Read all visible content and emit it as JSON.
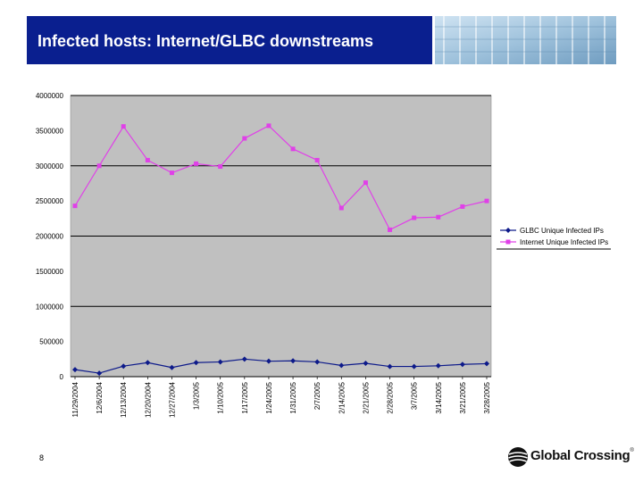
{
  "slide": {
    "title": "Infected hosts: Internet/GLBC downstreams",
    "page_number": "8",
    "logo_text": "Global Crossing",
    "logo_reg": "®"
  },
  "colors": {
    "title_bg": "#0a1f8f",
    "plot_bg": "#c0c0c0",
    "series_glbc": "#0d1a8a",
    "series_internet": "#e040e8"
  },
  "chart_data": {
    "type": "line",
    "title": "",
    "xlabel": "",
    "ylabel": "",
    "ylim": [
      0,
      4000000
    ],
    "yticks": [
      0,
      500000,
      1000000,
      1500000,
      2000000,
      2500000,
      3000000,
      3500000,
      4000000
    ],
    "ytick_labels": [
      "0",
      "500000",
      "1000000",
      "1500000",
      "2000000",
      "2500000",
      "3000000",
      "3500000",
      "4000000"
    ],
    "categories": [
      "11/29/2004",
      "12/6/2004",
      "12/13/2004",
      "12/20/2004",
      "12/27/2004",
      "1/3/2005",
      "1/10/2005",
      "1/17/2005",
      "1/24/2005",
      "1/31/2005",
      "2/7/2005",
      "2/14/2005",
      "2/21/2005",
      "2/28/2005",
      "3/7/2005",
      "3/14/2005",
      "3/21/2005",
      "3/28/2005"
    ],
    "grid_lines": [
      0,
      1000000,
      2000000,
      3000000,
      4000000
    ],
    "legend_position": "right",
    "series": [
      {
        "name": "GLBC Unique Infected IPs",
        "marker": "diamond",
        "values": [
          100000,
          50000,
          150000,
          200000,
          130000,
          200000,
          210000,
          250000,
          220000,
          225000,
          210000,
          160000,
          190000,
          145000,
          145000,
          155000,
          175000,
          185000
        ]
      },
      {
        "name": "Internet Unique Infected IPs",
        "marker": "square",
        "values": [
          2430000,
          3000000,
          3560000,
          3080000,
          2900000,
          3030000,
          2990000,
          3390000,
          3570000,
          3240000,
          3080000,
          2400000,
          2760000,
          2090000,
          2260000,
          2270000,
          2420000,
          2500000
        ]
      }
    ]
  }
}
